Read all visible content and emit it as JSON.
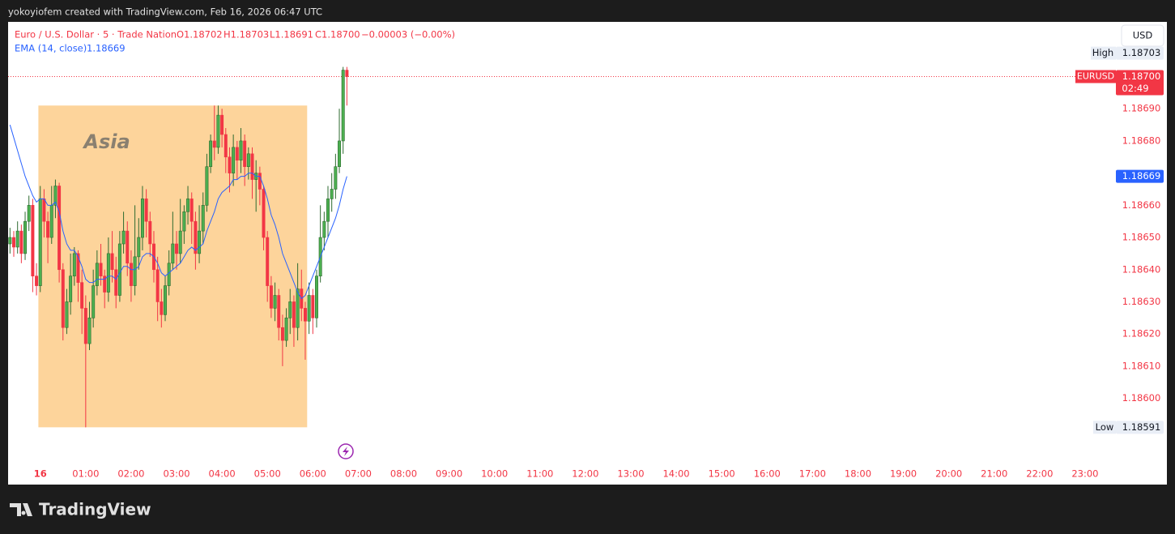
{
  "header": {
    "attribution": "yokoyiofem created with TradingView.com, Feb 16, 2026 06:47 UTC",
    "symbol": "Euro / U.S. Dollar · 5 · Trade Nation",
    "open": "O1.18702",
    "high": "H1.18703",
    "low": "L1.18691",
    "close": "C1.18700",
    "change": "−0.00003 (−0.00%)",
    "currency": "USD",
    "brand": "TradingView"
  },
  "chart_data": {
    "type": "candlestick",
    "up_color": "#4caf50",
    "down_color": "#f23645",
    "xlim": [
      -0.5,
      291.5
    ],
    "xticks": [
      {
        "value": 8,
        "label": "16"
      },
      {
        "value": 20,
        "label": "01:00"
      },
      {
        "value": 32,
        "label": "02:00"
      },
      {
        "value": 44,
        "label": "03:00"
      },
      {
        "value": 56,
        "label": "04:00"
      },
      {
        "value": 68,
        "label": "05:00"
      },
      {
        "value": 80,
        "label": "06:00"
      },
      {
        "value": 92,
        "label": "07:00"
      },
      {
        "value": 104,
        "label": "08:00"
      },
      {
        "value": 116,
        "label": "09:00"
      },
      {
        "value": 128,
        "label": "10:00"
      },
      {
        "value": 140,
        "label": "11:00"
      },
      {
        "value": 152,
        "label": "12:00"
      },
      {
        "value": 164,
        "label": "13:00"
      },
      {
        "value": 176,
        "label": "14:00"
      },
      {
        "value": 188,
        "label": "15:00"
      },
      {
        "value": 200,
        "label": "16:00"
      },
      {
        "value": 212,
        "label": "17:00"
      },
      {
        "value": 224,
        "label": "18:00"
      },
      {
        "value": 236,
        "label": "19:00"
      },
      {
        "value": 248,
        "label": "20:00"
      },
      {
        "value": 260,
        "label": "21:00"
      },
      {
        "value": 272,
        "label": "22:00"
      },
      {
        "value": 284,
        "label": "23:00"
      }
    ],
    "ylim": [
      1.1858,
      1.18717
    ],
    "yticks": [
      {
        "value": 1.1869,
        "label": "1.18690"
      },
      {
        "value": 1.1868,
        "label": "1.18680"
      },
      {
        "value": 1.1866,
        "label": "1.18660"
      },
      {
        "value": 1.1865,
        "label": "1.18650"
      },
      {
        "value": 1.1864,
        "label": "1.18640"
      },
      {
        "value": 1.1863,
        "label": "1.18630"
      },
      {
        "value": 1.1862,
        "label": "1.18620"
      },
      {
        "value": 1.1861,
        "label": "1.18610"
      },
      {
        "value": 1.186,
        "label": "1.18600"
      }
    ],
    "candles": [
      [
        1.18648,
        1.18653,
        1.18645,
        1.1865
      ],
      [
        1.1865,
        1.18652,
        1.18644,
        1.18647
      ],
      [
        1.18647,
        1.18655,
        1.18645,
        1.18652
      ],
      [
        1.18652,
        1.18654,
        1.18642,
        1.18645
      ],
      [
        1.18645,
        1.18658,
        1.18643,
        1.18655
      ],
      [
        1.18655,
        1.18663,
        1.18652,
        1.1866
      ],
      [
        1.1866,
        1.18662,
        1.18633,
        1.18638
      ],
      [
        1.18638,
        1.18642,
        1.18632,
        1.18635
      ],
      [
        1.18635,
        1.18666,
        1.18633,
        1.18662
      ],
      [
        1.18662,
        1.18665,
        1.1865,
        1.18655
      ],
      [
        1.18655,
        1.18658,
        1.18642,
        1.1865
      ],
      [
        1.1865,
        1.18666,
        1.18648,
        1.1866
      ],
      [
        1.1866,
        1.18668,
        1.18656,
        1.18666
      ],
      [
        1.18666,
        1.18667,
        1.18636,
        1.1864
      ],
      [
        1.1864,
        1.18642,
        1.18618,
        1.18622
      ],
      [
        1.18622,
        1.18634,
        1.1862,
        1.1863
      ],
      [
        1.1863,
        1.18645,
        1.18626,
        1.18638
      ],
      [
        1.18638,
        1.18647,
        1.18635,
        1.18645
      ],
      [
        1.18645,
        1.18646,
        1.1863,
        1.18636
      ],
      [
        1.18636,
        1.1864,
        1.1862,
        1.18628
      ],
      [
        1.18628,
        1.18632,
        1.18591,
        1.18617
      ],
      [
        1.18617,
        1.1863,
        1.18615,
        1.18625
      ],
      [
        1.18625,
        1.1864,
        1.18622,
        1.18635
      ],
      [
        1.18635,
        1.18646,
        1.18632,
        1.18642
      ],
      [
        1.18642,
        1.18648,
        1.18635,
        1.18638
      ],
      [
        1.18638,
        1.1864,
        1.18628,
        1.18633
      ],
      [
        1.18633,
        1.1865,
        1.1863,
        1.18645
      ],
      [
        1.18645,
        1.18652,
        1.18636,
        1.1864
      ],
      [
        1.1864,
        1.18644,
        1.18628,
        1.18632
      ],
      [
        1.18632,
        1.18652,
        1.1863,
        1.18648
      ],
      [
        1.18648,
        1.18658,
        1.18645,
        1.18652
      ],
      [
        1.18652,
        1.18655,
        1.18638,
        1.18642
      ],
      [
        1.18642,
        1.18646,
        1.1863,
        1.18635
      ],
      [
        1.18635,
        1.1866,
        1.18632,
        1.18644
      ],
      [
        1.18644,
        1.18656,
        1.1864,
        1.1865
      ],
      [
        1.1865,
        1.18666,
        1.18646,
        1.18662
      ],
      [
        1.18662,
        1.18665,
        1.1865,
        1.18655
      ],
      [
        1.18655,
        1.18658,
        1.18644,
        1.18648
      ],
      [
        1.18648,
        1.18652,
        1.18636,
        1.1864
      ],
      [
        1.1864,
        1.18644,
        1.18624,
        1.1863
      ],
      [
        1.1863,
        1.18634,
        1.18622,
        1.18626
      ],
      [
        1.18626,
        1.18638,
        1.18624,
        1.18635
      ],
      [
        1.18635,
        1.18646,
        1.18632,
        1.18642
      ],
      [
        1.18642,
        1.18658,
        1.1864,
        1.18648
      ],
      [
        1.18648,
        1.18652,
        1.1864,
        1.18645
      ],
      [
        1.18645,
        1.18662,
        1.18642,
        1.18652
      ],
      [
        1.18652,
        1.1866,
        1.18648,
        1.18658
      ],
      [
        1.18658,
        1.18666,
        1.18654,
        1.18662
      ],
      [
        1.18662,
        1.18664,
        1.18648,
        1.18655
      ],
      [
        1.18655,
        1.18658,
        1.1864,
        1.18645
      ],
      [
        1.18645,
        1.1866,
        1.18642,
        1.18652
      ],
      [
        1.18652,
        1.18664,
        1.18648,
        1.1866
      ],
      [
        1.1866,
        1.18676,
        1.18658,
        1.18672
      ],
      [
        1.18672,
        1.18682,
        1.1867,
        1.1868
      ],
      [
        1.1868,
        1.18691,
        1.18674,
        1.18678
      ],
      [
        1.18678,
        1.18691,
        1.18676,
        1.18688
      ],
      [
        1.18688,
        1.1869,
        1.18678,
        1.18682
      ],
      [
        1.18682,
        1.18684,
        1.1867,
        1.18675
      ],
      [
        1.18675,
        1.18678,
        1.18664,
        1.1867
      ],
      [
        1.1867,
        1.18682,
        1.18666,
        1.18678
      ],
      [
        1.18678,
        1.1868,
        1.18668,
        1.18674
      ],
      [
        1.18674,
        1.18684,
        1.1867,
        1.1868
      ],
      [
        1.1868,
        1.18682,
        1.18666,
        1.18672
      ],
      [
        1.18672,
        1.18678,
        1.18668,
        1.18676
      ],
      [
        1.18676,
        1.18678,
        1.18662,
        1.18668
      ],
      [
        1.18668,
        1.18674,
        1.18658,
        1.1867
      ],
      [
        1.1867,
        1.18672,
        1.1866,
        1.18665
      ],
      [
        1.18665,
        1.18666,
        1.18646,
        1.1865
      ],
      [
        1.1865,
        1.18652,
        1.1863,
        1.18635
      ],
      [
        1.18635,
        1.18638,
        1.18625,
        1.18628
      ],
      [
        1.18628,
        1.18636,
        1.18624,
        1.18632
      ],
      [
        1.18632,
        1.18634,
        1.18618,
        1.18622
      ],
      [
        1.18622,
        1.18626,
        1.1861,
        1.18618
      ],
      [
        1.18618,
        1.18628,
        1.18616,
        1.18625
      ],
      [
        1.18625,
        1.18634,
        1.1862,
        1.1863
      ],
      [
        1.1863,
        1.18632,
        1.18616,
        1.18622
      ],
      [
        1.18622,
        1.18642,
        1.18618,
        1.18634
      ],
      [
        1.18634,
        1.1864,
        1.18624,
        1.18628
      ],
      [
        1.18628,
        1.1863,
        1.18612,
        1.18624
      ],
      [
        1.18624,
        1.18636,
        1.1862,
        1.18632
      ],
      [
        1.18632,
        1.18634,
        1.1862,
        1.18625
      ],
      [
        1.18625,
        1.1864,
        1.18622,
        1.18638
      ],
      [
        1.18638,
        1.1866,
        1.18636,
        1.1865
      ],
      [
        1.1865,
        1.18658,
        1.18646,
        1.18655
      ],
      [
        1.18655,
        1.18666,
        1.1865,
        1.18662
      ],
      [
        1.18662,
        1.1867,
        1.18658,
        1.18665
      ],
      [
        1.18665,
        1.18676,
        1.18662,
        1.18672
      ],
      [
        1.18672,
        1.1869,
        1.1867,
        1.1868
      ],
      [
        1.1868,
        1.18703,
        1.18676,
        1.18702
      ],
      [
        1.18702,
        1.18703,
        1.18691,
        1.187
      ]
    ],
    "series": [
      {
        "name": "EMA (14, close)",
        "color": "#2962ff",
        "values": [
          1.18685,
          1.18681,
          1.18677,
          1.18673,
          1.18669,
          1.18666,
          1.18663,
          1.18661,
          1.18662,
          1.18662,
          1.1866,
          1.1866,
          1.18661,
          1.18658,
          1.18652,
          1.18648,
          1.18646,
          1.18646,
          1.18644,
          1.18641,
          1.18637,
          1.18636,
          1.18636,
          1.18637,
          1.18637,
          1.18637,
          1.18638,
          1.18638,
          1.18637,
          1.18639,
          1.18641,
          1.18641,
          1.1864,
          1.1864,
          1.18641,
          1.18644,
          1.18645,
          1.18645,
          1.18644,
          1.18642,
          1.18639,
          1.18638,
          1.18639,
          1.1864,
          1.18641,
          1.18642,
          1.18644,
          1.18646,
          1.18647,
          1.18646,
          1.18647,
          1.18648,
          1.18652,
          1.18655,
          1.18658,
          1.18662,
          1.18664,
          1.18665,
          1.18666,
          1.18668,
          1.18668,
          1.18669,
          1.18669,
          1.1867,
          1.1867,
          1.18669,
          1.18669,
          1.18666,
          1.18662,
          1.18657,
          1.18654,
          1.1865,
          1.18645,
          1.18642,
          1.18639,
          1.18636,
          1.18633,
          1.18631,
          1.18632,
          1.18635,
          1.18638,
          1.18641,
          1.18644,
          1.18647,
          1.1865,
          1.18653,
          1.18656,
          1.1866,
          1.18665,
          1.18669
        ]
      }
    ],
    "session": {
      "label": "Asia",
      "x0": 7.5,
      "x1": 78.5,
      "high": 1.18691,
      "low": 1.18591,
      "color": "#fdd49b"
    },
    "high_tag": {
      "label": "High",
      "value": 1.18703
    },
    "low_tag": {
      "label": "Low",
      "value": 1.18591
    },
    "last_tag": {
      "symbol": "EURUSD",
      "value": 1.187,
      "label": "1.18700",
      "countdown": "02:49"
    },
    "ema_tag": 1.18669
  }
}
